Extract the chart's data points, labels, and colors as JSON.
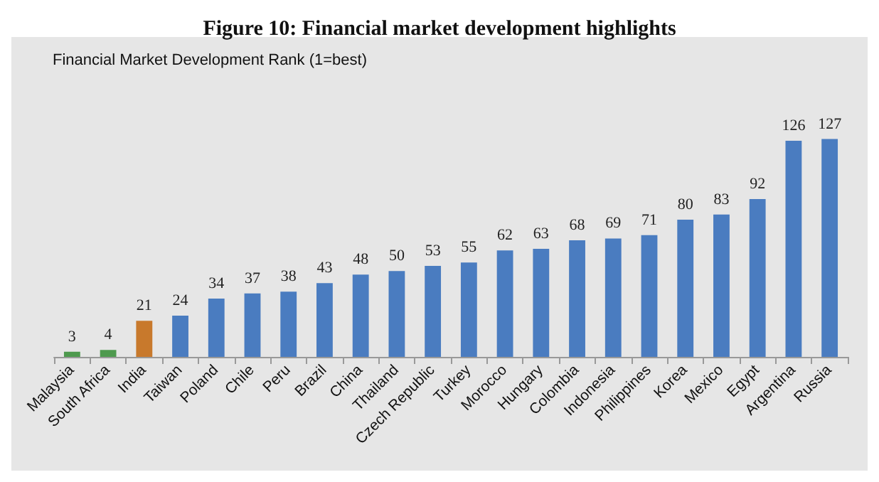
{
  "chart_data": {
    "type": "bar",
    "title": "Figure 10: Financial market development highlights",
    "subtitle": "Financial Market Development Rank (1=best)",
    "categories": [
      "Malaysia",
      "South Africa",
      "India",
      "Taiwan",
      "Poland",
      "Chile",
      "Peru",
      "Brazil",
      "China",
      "Thailand",
      "Czech Republic",
      "Turkey",
      "Morocco",
      "Hungary",
      "Colombia",
      "Indonesia",
      "Philippines",
      "Korea",
      "Mexico",
      "Egypt",
      "Argentina",
      "Russia"
    ],
    "values": [
      3,
      4,
      21,
      24,
      34,
      37,
      38,
      43,
      48,
      50,
      53,
      55,
      62,
      63,
      68,
      69,
      71,
      80,
      83,
      92,
      126,
      127
    ],
    "colors": [
      "#4e9a4e",
      "#4e9a4e",
      "#c8792c",
      "#4a7cc0",
      "#4a7cc0",
      "#4a7cc0",
      "#4a7cc0",
      "#4a7cc0",
      "#4a7cc0",
      "#4a7cc0",
      "#4a7cc0",
      "#4a7cc0",
      "#4a7cc0",
      "#4a7cc0",
      "#4a7cc0",
      "#4a7cc0",
      "#4a7cc0",
      "#4a7cc0",
      "#4a7cc0",
      "#4a7cc0",
      "#4a7cc0",
      "#4a7cc0"
    ],
    "data_labels": true
  }
}
